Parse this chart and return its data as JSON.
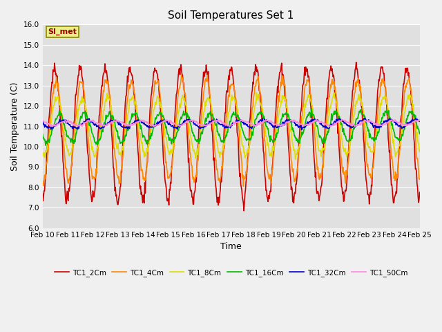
{
  "title": "Soil Temperatures Set 1",
  "xlabel": "Time",
  "ylabel": "Soil Temperature (C)",
  "ylim": [
    6.0,
    16.0
  ],
  "yticks": [
    6.0,
    7.0,
    8.0,
    9.0,
    10.0,
    11.0,
    12.0,
    13.0,
    14.0,
    15.0,
    16.0
  ],
  "date_labels": [
    "Feb 10",
    "Feb 11",
    "Feb 12",
    "Feb 13",
    "Feb 14",
    "Feb 15",
    "Feb 16",
    "Feb 17",
    "Feb 18",
    "Feb 19",
    "Feb 20",
    "Feb 21",
    "Feb 22",
    "Feb 23",
    "Feb 24",
    "Feb 25"
  ],
  "series_order": [
    "TC1_2Cm",
    "TC1_4Cm",
    "TC1_8Cm",
    "TC1_16Cm",
    "TC1_32Cm",
    "TC1_50Cm"
  ],
  "colors": {
    "TC1_2Cm": "#cc0000",
    "TC1_4Cm": "#ff8800",
    "TC1_8Cm": "#dddd00",
    "TC1_16Cm": "#00bb00",
    "TC1_32Cm": "#0000cc",
    "TC1_50Cm": "#ff88dd"
  },
  "lw": 1.2,
  "annotation_text": "SI_met",
  "annotation_color": "#990000",
  "annotation_bg": "#eeee88",
  "annotation_border": "#888800",
  "fig_bg": "#f0f0f0",
  "plot_bg": "#e0e0e0",
  "grid_color": "#ffffff"
}
